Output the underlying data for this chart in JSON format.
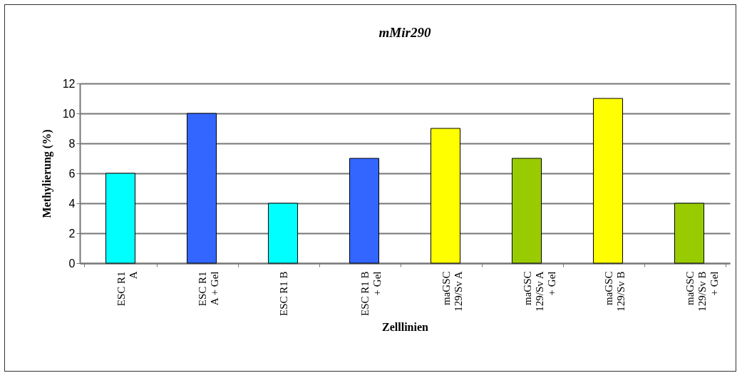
{
  "chart_data": {
    "type": "bar",
    "title": "mMir290",
    "xlabel": "Zelllinien",
    "ylabel": "Methylierung (%)",
    "categories": [
      "ESC R1\nA",
      "ESC R1\nA + Gel",
      "ESC R1 B",
      "ESC R1 B\n+ Gel",
      "maGSC\n129/Sv A",
      "maGSC\n129/Sv A\n+ Gel",
      "maGSC\n129/Sv B",
      "maGSC\n129/Sv B\n+ Gel"
    ],
    "values": [
      6,
      10,
      4,
      7,
      9,
      7,
      11,
      4
    ],
    "colors": [
      "#00ffff",
      "#3366ff",
      "#00ffff",
      "#3366ff",
      "#ffff00",
      "#99cc00",
      "#ffff00",
      "#99cc00"
    ],
    "ylim": [
      0,
      12
    ],
    "yticks": [
      0,
      2,
      4,
      6,
      8,
      10,
      12
    ],
    "grid": "y",
    "legend": false
  }
}
